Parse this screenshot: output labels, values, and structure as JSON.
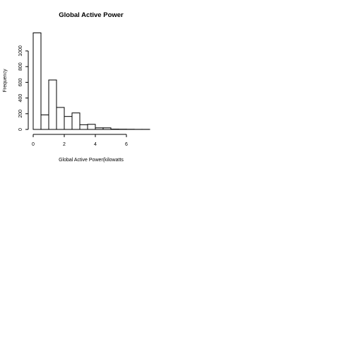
{
  "chart_data": {
    "type": "bar",
    "title": "Global Active Power",
    "xlabel": "Global Active Power(kilowatts",
    "ylabel": "Frequency",
    "bin_width": 0.5,
    "bin_starts": [
      0,
      0.5,
      1.0,
      1.5,
      2.0,
      2.5,
      3.0,
      3.5,
      4.0,
      4.5,
      5.0,
      5.5,
      6.0,
      6.5,
      7.0
    ],
    "values": [
      1230,
      185,
      630,
      280,
      165,
      210,
      60,
      65,
      20,
      20,
      4,
      3,
      2,
      1,
      1
    ],
    "xlim": [
      0,
      7.5
    ],
    "ylim": [
      0,
      1200
    ],
    "x_ticks": [
      0,
      2,
      4,
      6
    ],
    "y_ticks": [
      0,
      200,
      400,
      600,
      800,
      1000
    ],
    "grid": false,
    "legend": "none"
  }
}
